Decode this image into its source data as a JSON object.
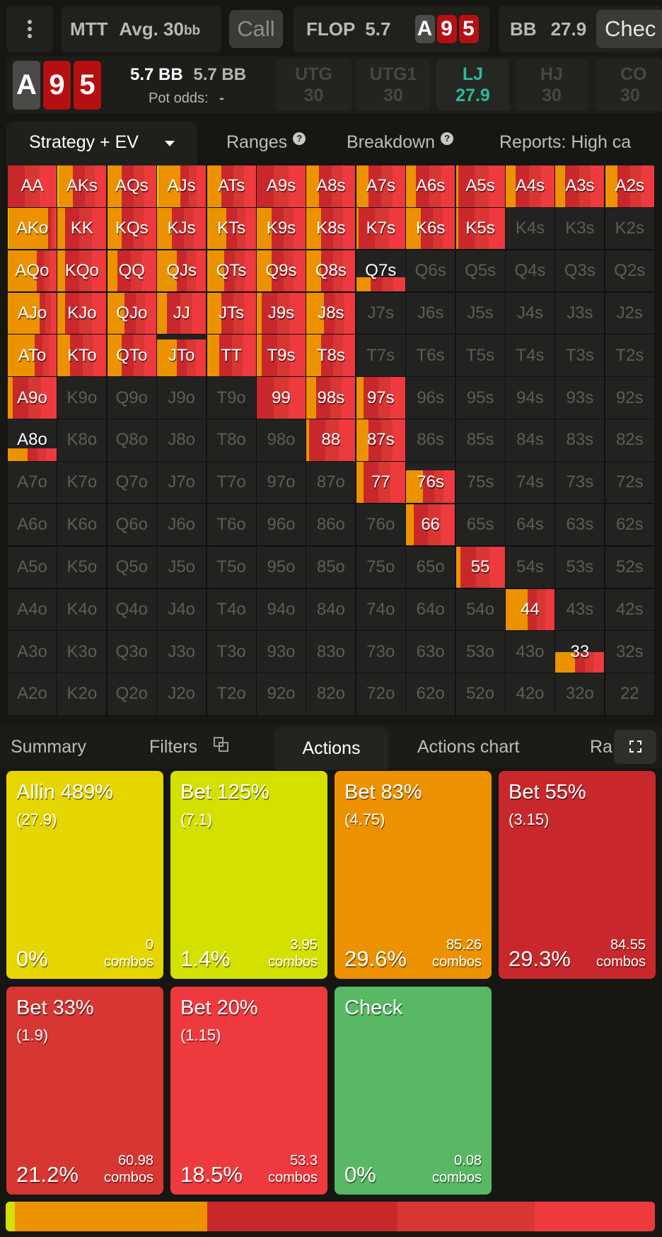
{
  "colors": {
    "allin": "#e6d600",
    "bet125": "#d4e000",
    "bet83": "#ec9200",
    "bet55": "#c8282c",
    "bet33": "#d83632",
    "bet20": "#ee3a3e",
    "check": "#58b864",
    "accent": "#2fb89a"
  },
  "header": {
    "menu_icon": "vertical-ellipsis-icon",
    "game": "MTT",
    "stack_label": "Avg. 30",
    "stack_unit": "bb",
    "prev_action": "Call",
    "street": "FLOP",
    "pot": "5.7",
    "board": [
      {
        "rank": "A",
        "color": "gray"
      },
      {
        "rank": "9",
        "color": "red"
      },
      {
        "rank": "5",
        "color": "red"
      }
    ],
    "player": "BB",
    "player_stack": "27.9",
    "next_action": "Chec"
  },
  "info": {
    "board": [
      {
        "rank": "A",
        "color": "gray"
      },
      {
        "rank": "9",
        "color": "red"
      },
      {
        "rank": "5",
        "color": "red"
      }
    ],
    "pot1": "5.7 BB",
    "pot2": "5.7 BB",
    "pot_odds_label": "Pot odds:",
    "pot_odds_value": "-",
    "positions": [
      {
        "name": "UTG",
        "stack": "30",
        "active": false
      },
      {
        "name": "UTG1",
        "stack": "30",
        "active": false
      },
      {
        "name": "LJ",
        "stack": "27.9",
        "active": true
      },
      {
        "name": "HJ",
        "stack": "30",
        "active": false
      },
      {
        "name": "CO",
        "stack": "30",
        "active": false
      }
    ]
  },
  "top_tabs": [
    {
      "label": "Strategy + EV",
      "active": true
    },
    {
      "label": "Ranges"
    },
    {
      "label": "Breakdown"
    },
    {
      "label": "Reports: High ca"
    }
  ],
  "grid": {
    "ranks": [
      "A",
      "K",
      "Q",
      "J",
      "T",
      "9",
      "8",
      "7",
      "6",
      "5",
      "4",
      "3",
      "2"
    ],
    "strategy": {
      "AA": [
        1,
        0
      ],
      "AKs": [
        1,
        0.3,
        0.02
      ],
      "AQs": [
        1,
        0.3
      ],
      "AJs": [
        1,
        0.45,
        0.02
      ],
      "ATs": [
        1,
        0.3
      ],
      "A9s": [
        1,
        0
      ],
      "A8s": [
        1,
        0.25
      ],
      "A7s": [
        1,
        0.25
      ],
      "A6s": [
        1,
        0.2
      ],
      "A5s": [
        1,
        0.05
      ],
      "A4s": [
        1,
        0.2
      ],
      "A3s": [
        1,
        0.2
      ],
      "A2s": [
        1,
        0.25
      ],
      "AKo": [
        1,
        0.8,
        0.02
      ],
      "KK": [
        1,
        0.15
      ],
      "KQs": [
        1,
        0.3
      ],
      "KJs": [
        1,
        0.3
      ],
      "KTs": [
        1,
        0.4
      ],
      "K9s": [
        1,
        0.3
      ],
      "K8s": [
        1,
        0.3
      ],
      "K7s": [
        1,
        0.05
      ],
      "K6s": [
        1,
        0.3
      ],
      "K5s": [
        1,
        0.05
      ],
      "AQo": [
        1,
        0.6
      ],
      "KQo": [
        1,
        0.15
      ],
      "QQ": [
        1,
        0.2
      ],
      "QJs": [
        1,
        0.4
      ],
      "QTs": [
        1,
        0.35
      ],
      "Q9s": [
        1,
        0.3
      ],
      "Q8s": [
        1,
        0.3
      ],
      "Q7s": [
        0.35,
        0.3
      ],
      "AJo": [
        1,
        0.65
      ],
      "KJo": [
        1,
        0.15
      ],
      "QJo": [
        1,
        0.35
      ],
      "JJ": [
        1,
        0.2
      ],
      "JTs": [
        1,
        0.3
      ],
      "J9s": [
        1,
        0.1
      ],
      "J8s": [
        1,
        0.35
      ],
      "ATo": [
        1,
        0.55
      ],
      "KTo": [
        1,
        0.25
      ],
      "QTo": [
        1,
        0.3
      ],
      "JTo": [
        0.88,
        0.4
      ],
      "TT": [
        1,
        0.25
      ],
      "T9s": [
        1,
        0.1
      ],
      "T8s": [
        1,
        0.3
      ],
      "A9o": [
        1,
        0.1
      ],
      "99": [
        1,
        0
      ],
      "98s": [
        1,
        0.2
      ],
      "97s": [
        1,
        0.15
      ],
      "A8o": [
        0.3,
        0.4
      ],
      "88": [
        1,
        0.05
      ],
      "87s": [
        1,
        0.25
      ],
      "77": [
        1,
        0.15
      ],
      "76s": [
        0.8,
        0.35
      ],
      "66": [
        1,
        0.15
      ],
      "55": [
        1,
        0.1
      ],
      "44": [
        1,
        0.45
      ],
      "33": [
        0.5,
        0.4
      ]
    }
  },
  "bottom_tabs": [
    {
      "label": "Summary"
    },
    {
      "label": "Filters",
      "icon": "copy-icon"
    },
    {
      "label": "Actions",
      "active": true
    },
    {
      "label": "Actions chart"
    },
    {
      "label": "Ra"
    }
  ],
  "expand_icon": "fullscreen-icon",
  "actions": [
    {
      "key": "allin",
      "title": "Allin 489%",
      "size": "(27.9)",
      "freq": "0%",
      "freq_value": 0,
      "combos": "0",
      "combos_label": "combos"
    },
    {
      "key": "bet125",
      "title": "Bet 125%",
      "size": "(7.1)",
      "freq": "1.4%",
      "freq_value": 1.4,
      "combos": "3.95",
      "combos_label": "combos"
    },
    {
      "key": "bet83",
      "title": "Bet 83%",
      "size": "(4.75)",
      "freq": "29.6%",
      "freq_value": 29.6,
      "combos": "85.26",
      "combos_label": "combos"
    },
    {
      "key": "bet55",
      "title": "Bet 55%",
      "size": "(3.15)",
      "freq": "29.3%",
      "freq_value": 29.3,
      "combos": "84.55",
      "combos_label": "combos"
    },
    {
      "key": "bet33",
      "title": "Bet 33%",
      "size": "(1.9)",
      "freq": "21.2%",
      "freq_value": 21.2,
      "combos": "60.98",
      "combos_label": "combos"
    },
    {
      "key": "bet20",
      "title": "Bet 20%",
      "size": "(1.15)",
      "freq": "18.5%",
      "freq_value": 18.5,
      "combos": "53.3",
      "combos_label": "combos"
    },
    {
      "key": "check",
      "title": "Check",
      "size": "",
      "freq": "0%",
      "freq_value": 0,
      "combos": "0.08",
      "combos_label": "combos"
    }
  ]
}
